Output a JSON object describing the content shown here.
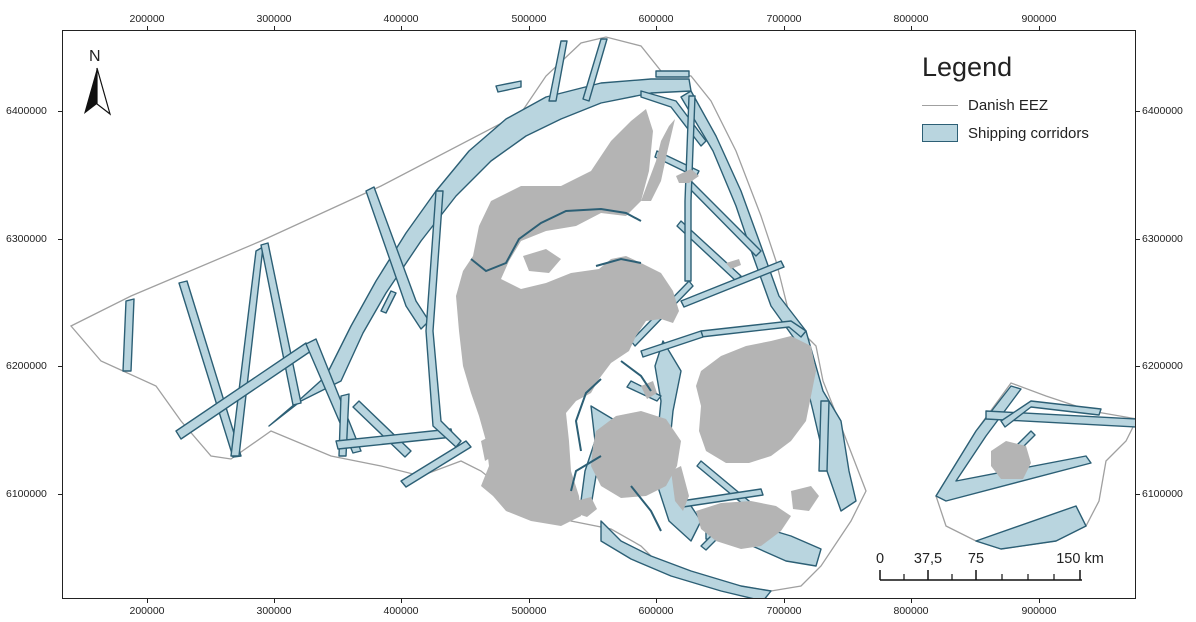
{
  "map": {
    "x_ticks": [
      "200000",
      "300000",
      "400000",
      "500000",
      "600000",
      "700000",
      "800000",
      "900000"
    ],
    "y_ticks": [
      "6400000",
      "6300000",
      "6200000",
      "6100000"
    ],
    "north_label": "N",
    "north_icon": "north-arrow-icon",
    "legend": {
      "title": "Legend",
      "items": [
        {
          "label": "Danish EEZ",
          "color": "#a0a0a0"
        },
        {
          "label": "Shipping corridors",
          "color": "#b9d5df",
          "stroke": "#2c5f75"
        }
      ]
    },
    "scale": {
      "labels": [
        "0",
        "37,5",
        "75",
        "150 km"
      ]
    },
    "colors": {
      "land": "#b4b4b4",
      "corridor_fill": "#b9d5df",
      "corridor_stroke": "#2c5f75",
      "eez": "#a0a0a0"
    }
  }
}
